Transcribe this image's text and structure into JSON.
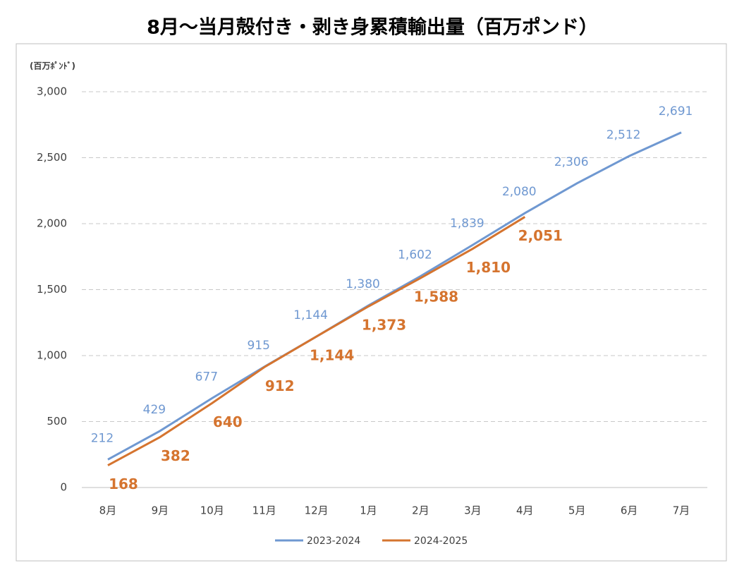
{
  "chart_data": {
    "type": "line",
    "title": "8月～当月殻付き・剥き身累積輸出量（百万ポンド）",
    "y_axis_label": "(百万ﾎﾟﾝﾄﾞ)",
    "categories": [
      "8月",
      "9月",
      "10月",
      "11月",
      "12月",
      "1月",
      "2月",
      "3月",
      "4月",
      "5月",
      "6月",
      "7月"
    ],
    "series": [
      {
        "name": "2023-2024",
        "color": "#6f98d1",
        "values": [
          212,
          429,
          677,
          915,
          1144,
          1380,
          1602,
          1839,
          2080,
          2306,
          2512,
          2691
        ],
        "value_labels": [
          "212",
          "429",
          "677",
          "915",
          "1,144",
          "1,380",
          "1,602",
          "1,839",
          "2,080",
          "2,306",
          "2,512",
          "2,691"
        ]
      },
      {
        "name": "2024-2025",
        "color": "#d5742f",
        "values": [
          168,
          382,
          640,
          912,
          1144,
          1373,
          1588,
          1810,
          2051,
          null,
          null,
          null
        ],
        "value_labels": [
          "168",
          "382",
          "640",
          "912",
          "1,144",
          "1,373",
          "1,588",
          "1,810",
          "2,051",
          null,
          null,
          null
        ]
      }
    ],
    "ylim": [
      0,
      3000
    ],
    "yticks": [
      0,
      500,
      {
        "value": 1000,
        "label": "1,000"
      },
      {
        "value": 1500,
        "label": "1,500"
      },
      {
        "value": 2000,
        "label": "2,000"
      },
      {
        "value": 2500,
        "label": "2,500"
      },
      {
        "value": 3000,
        "label": "3,000"
      }
    ],
    "grid": true,
    "legend": "bottom"
  }
}
